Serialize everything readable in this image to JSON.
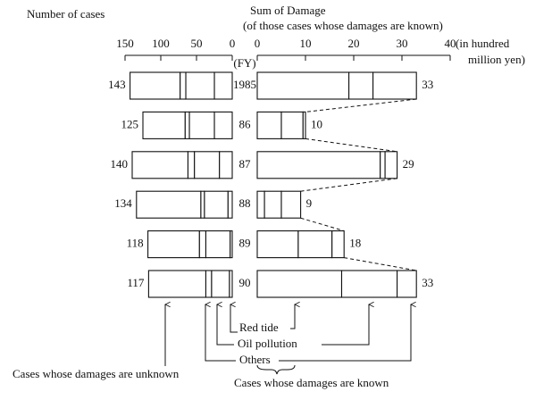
{
  "chart_data": {
    "type": "butterfly",
    "category_label": "(FY)",
    "categories": [
      "1985",
      "86",
      "87",
      "88",
      "89",
      "90"
    ],
    "left": {
      "title": "Number of cases",
      "xlim": [
        150,
        0
      ],
      "xticks": [
        150,
        100,
        50,
        0
      ],
      "totals": [
        143,
        125,
        140,
        134,
        118,
        117
      ]
    },
    "right": {
      "title": "Sum of Damage",
      "subtitle": "(of those cases whose damages are known)",
      "unit_lines": [
        "(in hundred",
        "million yen)"
      ],
      "xlim": [
        0,
        40
      ],
      "xticks": [
        0,
        10,
        20,
        30,
        40
      ],
      "totals": [
        33,
        10,
        29,
        9,
        18,
        33
      ]
    },
    "series": [
      {
        "name": "Red tide",
        "cases": [
          25,
          25,
          18,
          6,
          3,
          4
        ],
        "damage": [
          19,
          5,
          25.5,
          1.5,
          8.5,
          17.5
        ]
      },
      {
        "name": "Oil pollution",
        "cases": [
          40,
          35,
          35,
          33,
          34,
          25
        ],
        "damage": [
          5,
          4.5,
          1,
          3.5,
          7,
          11.5
        ]
      },
      {
        "name": "Others",
        "cases": [
          8,
          6,
          9,
          5,
          9,
          8
        ],
        "damage": [
          9,
          0.5,
          2.5,
          4,
          2.5,
          4
        ]
      }
    ],
    "unknown": {
      "name": "Cases whose damages are unknown",
      "cases": [
        70,
        59,
        78,
        90,
        72,
        80
      ]
    },
    "known_label": "Cases whose damages are known"
  }
}
